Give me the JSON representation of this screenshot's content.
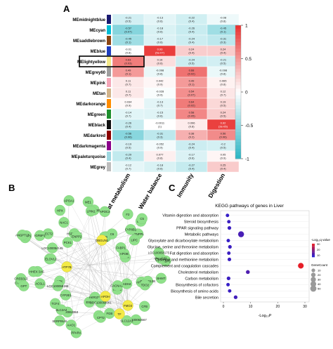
{
  "panels": {
    "a": "A",
    "b": "B",
    "c": "C"
  },
  "chart_data": [
    {
      "type": "heatmap",
      "modules": [
        "MEmidnightblue",
        "MEcyan",
        "MEsaddlebrown",
        "MEblue",
        "MElightyellow",
        "MEgrey60",
        "MEpink",
        "MEtan",
        "MEdarkorange",
        "MEgreen",
        "MEblack",
        "MEdarkred",
        "MEdarkmagenta",
        "MEpaleturquoise",
        "MEgrey"
      ],
      "module_colors": [
        "#191970",
        "#00bcd4",
        "#8b4513",
        "#1f3fbf",
        "#f3e98a",
        "#9e9e9e",
        "#f4a6b8",
        "#d2b48c",
        "#ff8c00",
        "#1f8f2e",
        "#111111",
        "#8b0000",
        "#8b008b",
        "#9ed7e0",
        "#bdbdbd"
      ],
      "traits": [
        "Fat metabolism",
        "Water balance",
        "Immunity",
        "Digestion"
      ],
      "cells": [
        [
          [
            "-0.21",
            "(0.5)"
          ],
          [
            "-0.13",
            "(0.6)"
          ],
          [
            "-0.22",
            "(0.4)"
          ],
          [
            "-0.08",
            "(0.8)"
          ]
        ],
        [
          [
            "-0.57",
            "(0.07)"
          ],
          [
            "-0.18",
            "(0.6)"
          ],
          [
            "-0.26",
            "(0.4)"
          ],
          [
            "-0.45",
            "(0.1)"
          ]
        ],
        [
          [
            "-0.45",
            "(0.1)"
          ],
          [
            "-0.17",
            "(0.6)"
          ],
          [
            "-0.24",
            "(0.4)"
          ],
          [
            "-0.31",
            "(0.3)"
          ]
        ],
        [
          [
            "-0.01",
            "(0.8)"
          ],
          [
            "0.93",
            "(5e-07)"
          ],
          [
            "0.24",
            "(0.4)"
          ],
          [
            "0.24",
            "(0.4)"
          ]
        ],
        [
          [
            "0.63",
            "(0.03)"
          ],
          [
            "0.16",
            "(0.6)"
          ],
          [
            "-0.24",
            "(0.5)"
          ],
          [
            "-0.21",
            "(0.5)"
          ]
        ],
        [
          [
            "0.49",
            "(0.1)"
          ],
          [
            "-0.098",
            "(0.8)"
          ],
          [
            "0.68",
            "(0.02)"
          ],
          [
            "-0.098",
            "(0.8)"
          ]
        ],
        [
          [
            "0.11",
            "(0.7)"
          ],
          [
            "0.042",
            "(0.9)"
          ],
          [
            "0.49",
            "(0.1)"
          ],
          [
            "0.065",
            "(0.8)"
          ]
        ],
        [
          [
            "0.11",
            "(0.7)"
          ],
          [
            "-0.028",
            "(0.9)"
          ],
          [
            "0.54",
            "(0.07)"
          ],
          [
            "0.12",
            "(0.7)"
          ]
        ],
        [
          [
            "0.034",
            "(0.9)"
          ],
          [
            "-0.13",
            "(0.7)"
          ],
          [
            "0.64",
            "(0.02)"
          ],
          [
            "0.19",
            "(0.5)"
          ]
        ],
        [
          [
            "-0.14",
            "(0.7)"
          ],
          [
            "-0.15",
            "(0.6)"
          ],
          [
            "0.58",
            "(0.05)"
          ],
          [
            "0.24",
            "(0.5)"
          ]
        ],
        [
          [
            "-0.26",
            "(0.4)"
          ],
          [
            "-0.0011",
            "(1)"
          ],
          [
            "0.096",
            "(0.8)"
          ],
          [
            "0.92",
            "(3e-05)"
          ]
        ],
        [
          [
            "-0.56",
            "(0.06)"
          ],
          [
            "-0.31",
            "(0.3)"
          ],
          [
            "0.38",
            "(0.2)"
          ],
          [
            "0.56",
            "(0.06)"
          ]
        ],
        [
          [
            "-0.19",
            "(0.5)"
          ],
          [
            "-0.052",
            "(0.9)"
          ],
          [
            "-0.24",
            "(0.4)"
          ],
          [
            "-0.2",
            "(0.5)"
          ]
        ],
        [
          [
            "-0.29",
            "(0.4)"
          ],
          [
            "0.077",
            "(0.8)"
          ],
          [
            "-0.17",
            "(0.6)"
          ],
          [
            "0.05",
            "(0.9)"
          ]
        ],
        [
          [
            "-0.12",
            "(0.7)"
          ],
          [
            "-0.18",
            "(0.6)"
          ],
          [
            "-0.27",
            "(0.4)"
          ],
          [
            "0.25",
            "(0.4)"
          ]
        ]
      ],
      "values": [
        [
          -0.21,
          -0.13,
          -0.22,
          -0.08
        ],
        [
          -0.57,
          -0.18,
          -0.26,
          -0.45
        ],
        [
          -0.45,
          -0.17,
          -0.24,
          -0.31
        ],
        [
          -0.01,
          0.93,
          0.24,
          0.24
        ],
        [
          0.63,
          0.16,
          -0.24,
          -0.21
        ],
        [
          0.49,
          -0.098,
          0.68,
          -0.098
        ],
        [
          0.11,
          0.042,
          0.49,
          0.065
        ],
        [
          0.11,
          -0.028,
          0.54,
          0.12
        ],
        [
          0.034,
          -0.13,
          0.64,
          0.19
        ],
        [
          -0.14,
          -0.15,
          0.58,
          0.24
        ],
        [
          -0.26,
          -0.0011,
          0.096,
          0.92
        ],
        [
          -0.56,
          -0.31,
          0.38,
          0.56
        ],
        [
          -0.19,
          -0.052,
          -0.24,
          -0.2
        ],
        [
          -0.29,
          0.077,
          -0.17,
          0.05
        ],
        [
          -0.12,
          -0.18,
          -0.27,
          0.25
        ]
      ],
      "highlighted_module": "MElightyellow",
      "colorbar": {
        "ticks": [
          "1",
          "0.5",
          "0",
          "-0.5",
          "-1"
        ],
        "range": [
          -1,
          1
        ],
        "colors": [
          "#2ab5c4",
          "#ffffff",
          "#e8302e"
        ]
      }
    },
    {
      "type": "network",
      "green_nodes": [
        "BHMT",
        "APOA4",
        "RND3",
        "LOC100063667",
        "TAT",
        "ESM",
        "SERPINA5",
        "TCF4",
        "LCK",
        "CYP7A1",
        "SLC10A6",
        "LOC100054145",
        "AMPD3",
        "NAC1",
        "HSD17B13",
        "ME1",
        "RAD51B",
        "PPP1R1A",
        "GPD1",
        "ETNPPL",
        "TTPA",
        "FKBP5",
        "PLA2G12B",
        "CACNA1A",
        "SLC12A1",
        "CPT2",
        "AKR1D1",
        "AAO1",
        "LOC100062353",
        "LOC100058165",
        "CREB3L3",
        "HHEX",
        "G6PC",
        "PEBP1",
        "LECT2",
        "ENPP2",
        "APOA1",
        "APOC3",
        "C6",
        "C5",
        "LIPC",
        "APOB",
        "HMGCS1",
        "TDO2",
        "ADH4",
        "CFB",
        "FGB",
        "LOC100068061",
        "PPARA",
        "SLC2A2",
        "CYP2E1",
        "GPT",
        "ACSL1",
        "ELOVL2",
        "ANGPTL3",
        "IGFBP1",
        "PCK1",
        "HPX",
        "LPIN1",
        "ALB",
        "F2",
        "CYP8B1",
        "FABP1",
        "LOC100058175"
      ],
      "yellow_nodes": [
        "ATP7B",
        "OBGUN1",
        "FMO3",
        "APOH",
        "TF"
      ]
    },
    {
      "type": "scatter",
      "title": "KEGG pathways of genes in Liver",
      "xlabel": "-Log₁₀P",
      "pathways": [
        "Vitamin digestion and absorption",
        "Steroid biosynthesis",
        "PPAR signaling pathway",
        "Metabolic pathways",
        "Glyoxylate and dicarboxylate metabolism",
        "Glycine, serine and threonine metabolism",
        "Fat digestion and absorption",
        "Cysteine and methionine metabolism",
        "Complement and coagulation cascades",
        "Cholesterol metabolism",
        "Carbon metabolism",
        "Biosynthesis of cofactors",
        "Biosynthesis of amino acids",
        "Bile secretion"
      ],
      "x": [
        1.5,
        2.0,
        2.2,
        6.5,
        1.8,
        2.4,
        2.0,
        2.2,
        28.5,
        9.0,
        1.9,
        1.7,
        2.3,
        4.5
      ],
      "gene_count": [
        8,
        8,
        10,
        45,
        8,
        10,
        8,
        9,
        40,
        12,
        10,
        8,
        8,
        10
      ],
      "neg_log_q": [
        2,
        3,
        3,
        5,
        2,
        3,
        3,
        3,
        30,
        6,
        3,
        2,
        3,
        4
      ],
      "xticks": [
        "0",
        "10",
        "20",
        "30"
      ],
      "xlim": [
        0,
        30
      ],
      "legend_q_title": "-Log₁₀q value",
      "legend_q_ticks": [
        "30",
        "20",
        "10"
      ],
      "legend_count_title": "GeneCount",
      "legend_count_ticks": [
        "10",
        "20",
        "30",
        "40",
        "50"
      ]
    }
  ]
}
